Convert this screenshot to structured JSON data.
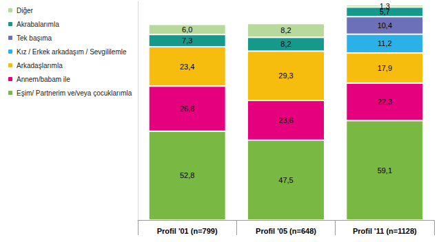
{
  "chart_data": {
    "type": "bar",
    "stacked": true,
    "data_labels": true,
    "grid": false,
    "tick_labels": "x",
    "legend": "top-left",
    "categories": [
      "Profil '01 (n=799)",
      "Profil '05 (n=648)",
      "Profil '11 (n=1128)"
    ],
    "ylim": [
      0,
      130
    ],
    "series": [
      {
        "name": "Eşim/ Partnerim ve/veya çocuklarımla",
        "color": "#79b843",
        "values": [
          52.8,
          47.5,
          59.1
        ],
        "value_labels": [
          "52,8",
          "47,5",
          "59,1"
        ]
      },
      {
        "name": "Annem/babam ile",
        "color": "#e5007d",
        "values": [
          26.8,
          23.6,
          22.3
        ],
        "value_labels": [
          "26,8",
          "23,6",
          "22,3"
        ]
      },
      {
        "name": "Arkadaşlarımla",
        "color": "#f6bd0f",
        "values": [
          23.4,
          29.3,
          17.9
        ],
        "value_labels": [
          "23,4",
          "29,3",
          "17,9"
        ]
      },
      {
        "name": "Kız / Erkek arkadaşım / Sevgililemle",
        "color": "#2cb0e8",
        "values": [
          null,
          null,
          11.2
        ],
        "value_labels": [
          null,
          null,
          "11,2"
        ]
      },
      {
        "name": "Tek başıma",
        "color": "#6b70b9",
        "values": [
          null,
          null,
          10.4
        ],
        "value_labels": [
          null,
          null,
          "10,4"
        ]
      },
      {
        "name": "Akrabalarımla",
        "color": "#16998a",
        "values": [
          7.3,
          8.2,
          5.7
        ],
        "value_labels": [
          "7,3",
          "8,2",
          "5,7"
        ]
      },
      {
        "name": "Diğer",
        "color": "#b7d99c",
        "values": [
          6.0,
          8.2,
          1.3
        ],
        "value_labels": [
          "6,0",
          "8,2",
          "1,3"
        ]
      }
    ]
  }
}
